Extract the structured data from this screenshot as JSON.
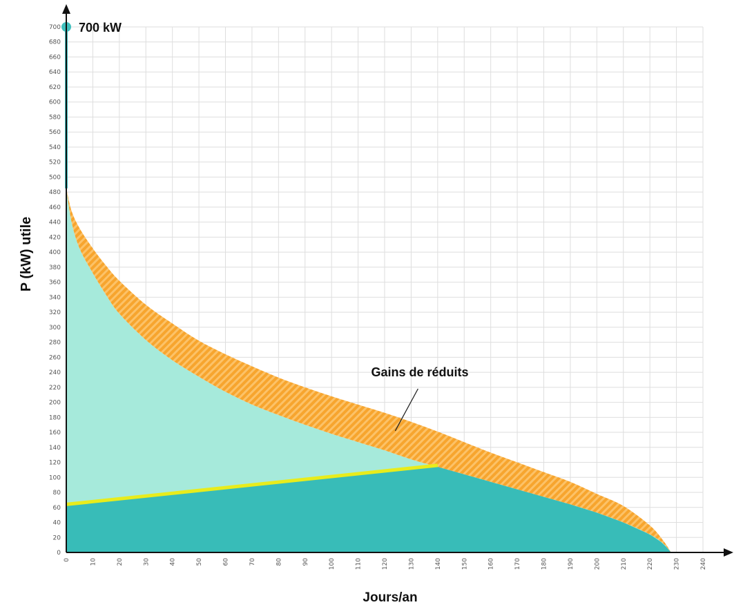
{
  "chart_data": {
    "type": "area",
    "xlabel": "Jours/an",
    "ylabel": "P (kW)  utile",
    "xlim": [
      0,
      240
    ],
    "ylim": [
      0,
      700
    ],
    "xticks": [
      0,
      10,
      20,
      30,
      40,
      50,
      60,
      70,
      80,
      90,
      100,
      110,
      120,
      130,
      140,
      150,
      160,
      170,
      180,
      190,
      200,
      210,
      220,
      230,
      240
    ],
    "yticks": [
      0,
      20,
      40,
      60,
      80,
      100,
      120,
      140,
      160,
      180,
      200,
      220,
      240,
      260,
      280,
      300,
      320,
      340,
      360,
      380,
      400,
      420,
      440,
      460,
      480,
      500,
      520,
      540,
      560,
      580,
      600,
      620,
      640,
      660,
      680,
      700
    ],
    "grid": true,
    "peak": {
      "x": 0,
      "y": 700,
      "label": "700 kW"
    },
    "annotation": {
      "text": "Gains de réduits",
      "point_x": 124,
      "point_y": 162
    },
    "series": [
      {
        "key": "upper_curve",
        "x": [
          0,
          2,
          5,
          10,
          15,
          20,
          30,
          40,
          50,
          60,
          70,
          80,
          90,
          100,
          110,
          120,
          130,
          140,
          150,
          160,
          170,
          180,
          190,
          200,
          210,
          220,
          225,
          228
        ],
        "y": [
          485,
          455,
          432,
          405,
          382,
          362,
          330,
          305,
          282,
          264,
          248,
          233,
          220,
          208,
          197,
          186,
          174,
          161,
          147,
          133,
          120,
          107,
          94,
          78,
          62,
          36,
          16,
          0
        ]
      },
      {
        "key": "reduced_curve",
        "x": [
          0,
          2,
          5,
          10,
          15,
          20,
          30,
          40,
          50,
          60,
          70,
          80,
          90,
          100,
          110,
          120,
          130,
          140,
          150,
          160,
          170,
          180,
          190,
          200,
          210,
          220,
          225,
          228
        ],
        "y": [
          485,
          440,
          405,
          372,
          343,
          318,
          283,
          256,
          234,
          214,
          197,
          183,
          170,
          158,
          147,
          136,
          124,
          114,
          104,
          94,
          84,
          74,
          64,
          53,
          40,
          24,
          12,
          0
        ]
      },
      {
        "key": "base_line",
        "x": [
          0,
          140
        ],
        "y": [
          64,
          116
        ]
      }
    ],
    "colors": {
      "light_area": "#a6eadb",
      "dark_area": "#38bcb8",
      "hatch_a": "#f7a52e",
      "hatch_b": "#fcc268",
      "base_line": "#e8ec1c",
      "peak_dot": "#3fbfbd",
      "peak_line": "#3fbfbd",
      "grid": "#dedede",
      "axis": "#111111"
    }
  }
}
